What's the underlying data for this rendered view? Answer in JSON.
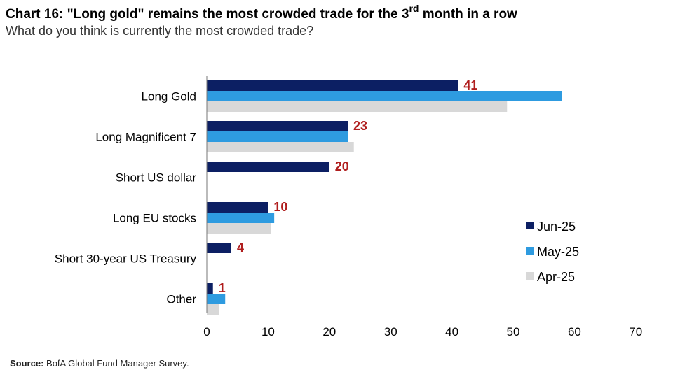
{
  "header": {
    "title_main": "Chart 16: \"Long gold\" remains the most crowded trade for the 3",
    "title_sup": "rd",
    "title_end": " month in a row",
    "subtitle": "What do you think is currently the most crowded trade?"
  },
  "footer": {
    "source_label": "Source:",
    "source_text": " BofA Global Fund Manager Survey."
  },
  "chart_data": {
    "type": "bar",
    "orientation": "horizontal",
    "categories": [
      "Long Gold",
      "Long Magnificent 7",
      "Short US dollar",
      "Long EU stocks",
      "Short 30-year US Treasury",
      "Other"
    ],
    "series": [
      {
        "name": "Jun-25",
        "color": "#0c1f63",
        "values": [
          41,
          23,
          20,
          10,
          4,
          1
        ]
      },
      {
        "name": "May-25",
        "color": "#2e9be0",
        "values": [
          58,
          23,
          0,
          11,
          0,
          3
        ]
      },
      {
        "name": "Apr-25",
        "color": "#d8d8d8",
        "values": [
          49,
          24,
          0,
          10.5,
          0,
          2
        ]
      }
    ],
    "data_labels": {
      "series": "Jun-25",
      "values": [
        "41",
        "23",
        "20",
        "10",
        "4",
        "1"
      ],
      "color": "#b01e1e"
    },
    "x_ticks": [
      "0",
      "10",
      "20",
      "30",
      "40",
      "50",
      "60",
      "70"
    ],
    "xlim": [
      0,
      70
    ],
    "grid": false,
    "legend_position": "right"
  }
}
